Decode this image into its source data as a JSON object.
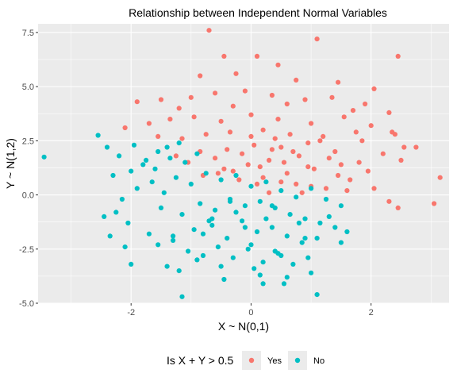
{
  "chart_data": {
    "type": "scatter",
    "title": "Relationship between Independent Normal Variables",
    "xlabel": "X ~ N(0,1)",
    "ylabel": "Y ~ N(1,2)",
    "xlim": [
      -3.55,
      3.3
    ],
    "ylim": [
      -5.0,
      7.9
    ],
    "x_ticks": [
      -2,
      0,
      2
    ],
    "x_tick_labels": [
      "-2",
      "0",
      "2"
    ],
    "y_ticks": [
      -5,
      -2.5,
      0,
      2.5,
      5,
      7.5
    ],
    "y_tick_labels": [
      "-5.0",
      "-2.5",
      "0.0",
      "2.5",
      "5.0",
      "7.5"
    ],
    "grid": true,
    "legend": {
      "title": "Is X + Y > 0.5",
      "position": "bottom",
      "entries": [
        {
          "label": "Yes",
          "color": "#F8766D"
        },
        {
          "label": "No",
          "color": "#00BFC4"
        }
      ]
    },
    "series": [
      {
        "name": "Yes",
        "color": "#F8766D",
        "x": [
          -0.7,
          1.1,
          2.45,
          -0.45,
          0.1,
          0.45,
          -0.85,
          -0.25,
          0.75,
          1.45,
          2.05,
          -1.9,
          -1.5,
          -1.0,
          -0.6,
          -0.1,
          0.35,
          0.9,
          1.35,
          1.9,
          -1.2,
          -0.3,
          0.6,
          1.7,
          2.3,
          -2.1,
          -1.7,
          -1.35,
          -0.95,
          -0.5,
          0.0,
          0.45,
          1.0,
          1.55,
          2.0,
          2.35,
          -1.55,
          -1.15,
          -0.75,
          -0.35,
          0.2,
          0.65,
          1.2,
          1.75,
          2.4,
          -1.25,
          -0.85,
          -0.4,
          0.05,
          0.5,
          0.95,
          1.4,
          1.85,
          2.55,
          -1.05,
          -0.6,
          -0.15,
          0.3,
          0.8,
          1.3,
          1.8,
          2.2,
          2.75,
          -0.8,
          -0.3,
          0.15,
          0.6,
          1.05,
          1.5,
          1.95,
          2.5,
          2.05,
          3.15,
          3.05,
          2.45,
          2.3,
          1.6,
          1.0,
          0.5,
          0.1,
          -0.2,
          -0.55,
          0.85,
          1.25,
          0.3,
          -0.05,
          0.7,
          1.15,
          0.4,
          0.95,
          1.45,
          0.2,
          0.55,
          1.65,
          -0.45,
          0.0,
          0.35,
          0.75
        ],
        "y": [
          7.6,
          7.2,
          6.4,
          6.4,
          6.4,
          6.0,
          5.5,
          5.6,
          5.3,
          5.2,
          4.9,
          4.3,
          4.4,
          4.5,
          4.7,
          4.8,
          4.6,
          4.4,
          4.5,
          4.2,
          4.0,
          4.1,
          4.2,
          3.9,
          3.8,
          3.1,
          3.3,
          3.5,
          3.6,
          3.4,
          3.7,
          3.5,
          3.3,
          3.6,
          3.2,
          2.9,
          2.7,
          2.6,
          2.8,
          2.9,
          3.0,
          2.8,
          2.7,
          2.9,
          2.8,
          1.8,
          2.0,
          2.1,
          2.3,
          2.2,
          2.4,
          2.0,
          2.5,
          2.2,
          1.5,
          1.7,
          1.9,
          1.6,
          1.8,
          1.7,
          1.5,
          1.9,
          2.2,
          0.9,
          1.1,
          1.3,
          1.0,
          1.2,
          1.4,
          1.1,
          1.6,
          0.3,
          0.8,
          -0.4,
          -0.6,
          -0.3,
          0.2,
          0.4,
          0.6,
          0.5,
          0.7,
          1.0,
          0.1,
          0.3,
          0.1,
          1.4,
          2.0,
          2.5,
          2.6,
          1.3,
          0.9,
          0.8,
          1.5,
          0.7,
          1.2,
          2.7,
          2.1,
          0.5
        ]
      },
      {
        "name": "No",
        "color": "#00BFC4",
        "x": [
          -3.45,
          -2.55,
          -2.4,
          -2.2,
          -1.95,
          -1.75,
          -1.55,
          -1.4,
          -1.2,
          -2.3,
          -2.0,
          -1.8,
          -1.6,
          -1.35,
          -1.1,
          -0.9,
          -2.15,
          -1.9,
          -1.65,
          -1.45,
          -1.25,
          -1.0,
          -0.75,
          -0.5,
          -0.25,
          0.0,
          0.25,
          0.5,
          0.75,
          1.0,
          1.25,
          1.5,
          -2.45,
          -2.25,
          -2.05,
          -1.5,
          -1.15,
          -0.85,
          -0.6,
          -0.35,
          -0.1,
          0.15,
          0.4,
          0.65,
          0.9,
          1.15,
          1.4,
          1.6,
          -2.35,
          -2.1,
          -1.7,
          -1.3,
          -0.95,
          -0.65,
          -0.4,
          -0.15,
          0.1,
          0.35,
          0.6,
          0.85,
          1.1,
          -1.05,
          -0.8,
          -0.55,
          -0.3,
          -0.05,
          0.2,
          0.45,
          0.7,
          0.95,
          -2.0,
          -1.2,
          -0.9,
          -0.45,
          0.05,
          0.55,
          1.0,
          -1.15,
          -0.5,
          0.2,
          0.6,
          1.1,
          -0.65,
          -0.25,
          0.35,
          0.8,
          1.3,
          -0.8,
          -0.1,
          0.4,
          0.15,
          -1.55,
          -1.3,
          -0.7,
          0.0,
          0.5,
          1.5,
          -0.35,
          0.25,
          0.9,
          -1.4
        ],
        "y": [
          1.75,
          2.75,
          2.2,
          1.8,
          2.3,
          1.6,
          2.0,
          2.2,
          2.4,
          0.9,
          1.1,
          1.4,
          1.2,
          1.7,
          1.5,
          1.9,
          -0.2,
          0.3,
          0.6,
          0.1,
          0.8,
          0.5,
          1.0,
          0.7,
          0.9,
          0.4,
          0.6,
          0.2,
          -0.1,
          0.3,
          -0.2,
          -0.5,
          -1.0,
          -0.8,
          -1.3,
          -0.6,
          -0.9,
          -0.4,
          -0.7,
          -0.2,
          -0.5,
          -0.3,
          -0.6,
          -0.9,
          -1.1,
          -1.3,
          -1.5,
          -1.7,
          -1.9,
          -2.4,
          -1.8,
          -2.1,
          -1.6,
          -1.4,
          -2.0,
          -1.2,
          -1.7,
          -1.5,
          -1.9,
          -2.2,
          -2.0,
          -2.6,
          -2.8,
          -2.4,
          -2.9,
          -2.5,
          -3.1,
          -2.7,
          -3.2,
          -2.9,
          -3.2,
          -3.5,
          -3.0,
          -3.9,
          -3.4,
          -4.1,
          -3.6,
          -4.7,
          -3.3,
          -4.1,
          -3.8,
          -4.6,
          -1.1,
          -0.8,
          -0.5,
          -1.3,
          -1.0,
          -1.8,
          -1.5,
          -2.6,
          -3.7,
          -2.3,
          -1.9,
          -1.2,
          -2.3,
          -2.8,
          -2.2,
          -0.3,
          -1.1,
          -2.0,
          -3.3
        ]
      }
    ]
  }
}
